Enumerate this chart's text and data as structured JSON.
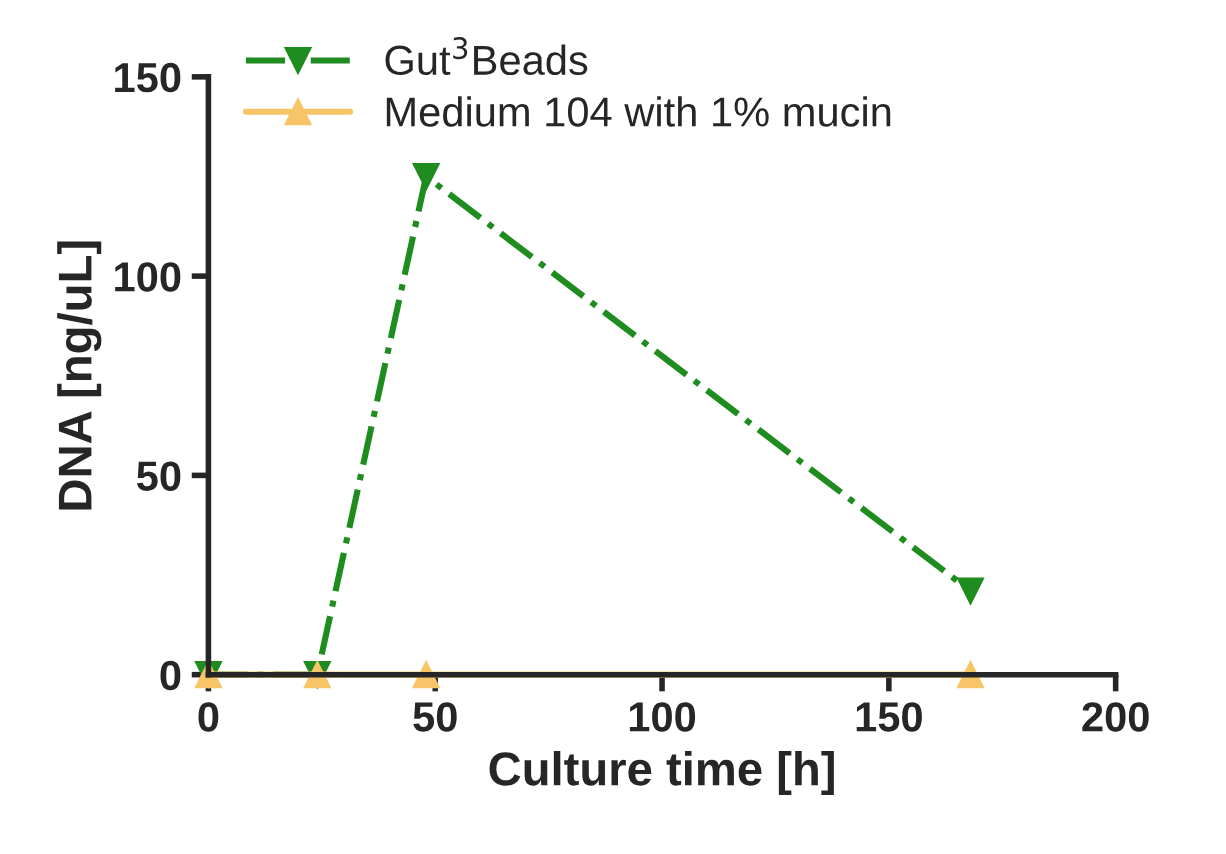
{
  "chart_data": {
    "type": "line",
    "xlabel": "Culture time [h]",
    "ylabel": "DNA [ng/uL]",
    "x": [
      0,
      24,
      48,
      168
    ],
    "series": [
      {
        "name": "Gut$^{3}$Beads",
        "color": "#1e8c1e",
        "values": [
          0,
          0,
          125,
          21
        ],
        "marker": "triangle_down",
        "line_style": "dashdot"
      },
      {
        "name": "Medium 104 with 1% mucin",
        "color": "#f7c567",
        "values": [
          0,
          0,
          0,
          0
        ],
        "marker": "triangle",
        "line_style": "solid"
      }
    ],
    "xlim": [
      0,
      200
    ],
    "ylim": [
      0,
      150
    ],
    "xticks": [
      0,
      50,
      100,
      150,
      200
    ],
    "yticks": [
      0,
      50,
      100,
      150
    ],
    "grid": false,
    "legend": "top left"
  }
}
